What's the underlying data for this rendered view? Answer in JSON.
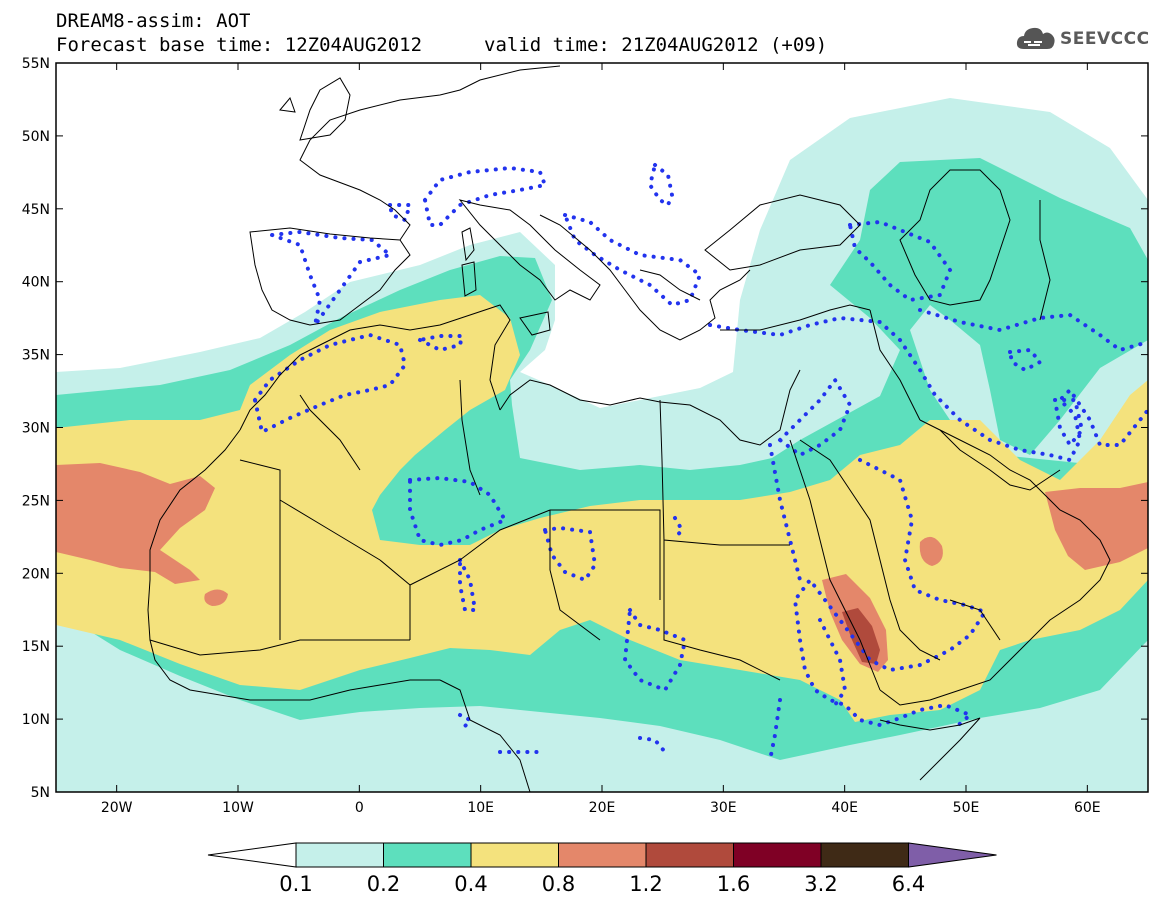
{
  "header": {
    "title_line1": "DREAM8-assim: AOT",
    "title_line2": "Forecast base time: 12Z04AUG2012",
    "valid_time": "valid time: 21Z04AUG2012 (+09)",
    "logo_text": "SEEVCCC",
    "logo_icon": "cloud-icon"
  },
  "map": {
    "lon_range": [
      -25,
      65
    ],
    "lat_range": [
      5,
      55
    ],
    "lat_labels": [
      "55N",
      "50N",
      "45N",
      "40N",
      "35N",
      "30N",
      "25N",
      "20N",
      "15N",
      "10N",
      "5N"
    ],
    "lon_labels": [
      "20W",
      "10W",
      "0",
      "10E",
      "20E",
      "30E",
      "40E",
      "50E",
      "60E"
    ],
    "field": "AOT (aerosol optical thickness)"
  },
  "colorbar": {
    "labels": [
      "0.1",
      "0.2",
      "0.4",
      "0.8",
      "1.2",
      "1.6",
      "3.2",
      "6.4"
    ],
    "colors": [
      "#ffffff",
      "#c5f0ea",
      "#5ddfbd",
      "#f4e27d",
      "#e4876a",
      "#b04a3c",
      "#7f0025",
      "#3f2a16",
      "#7f5ea8"
    ]
  }
}
